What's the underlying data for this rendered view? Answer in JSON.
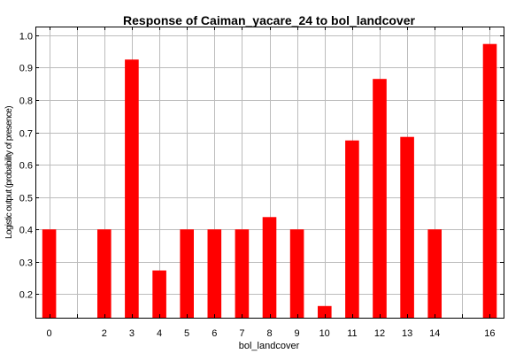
{
  "chart_data": {
    "type": "bar",
    "title": "Response of Caiman_yacare_24 to bol_landcover",
    "xlabel": "bol_landcover",
    "ylabel": "Logistic output (probability of presence)",
    "categories": [
      "0",
      "2",
      "3",
      "4",
      "5",
      "6",
      "7",
      "8",
      "9",
      "10",
      "11",
      "12",
      "13",
      "14",
      "16"
    ],
    "values": [
      0.4,
      0.4,
      0.925,
      0.273,
      0.4,
      0.4,
      0.4,
      0.438,
      0.4,
      0.163,
      0.675,
      0.865,
      0.686,
      0.4,
      0.973
    ],
    "xlim": [
      -0.5,
      16.5
    ],
    "ylim": [
      0.127,
      1.027
    ],
    "yticks": [
      "0.2",
      "0.3",
      "0.4",
      "0.5",
      "0.6",
      "0.7",
      "0.8",
      "0.9",
      "1.0"
    ],
    "grid": true,
    "bar_color": "#ff0000"
  }
}
